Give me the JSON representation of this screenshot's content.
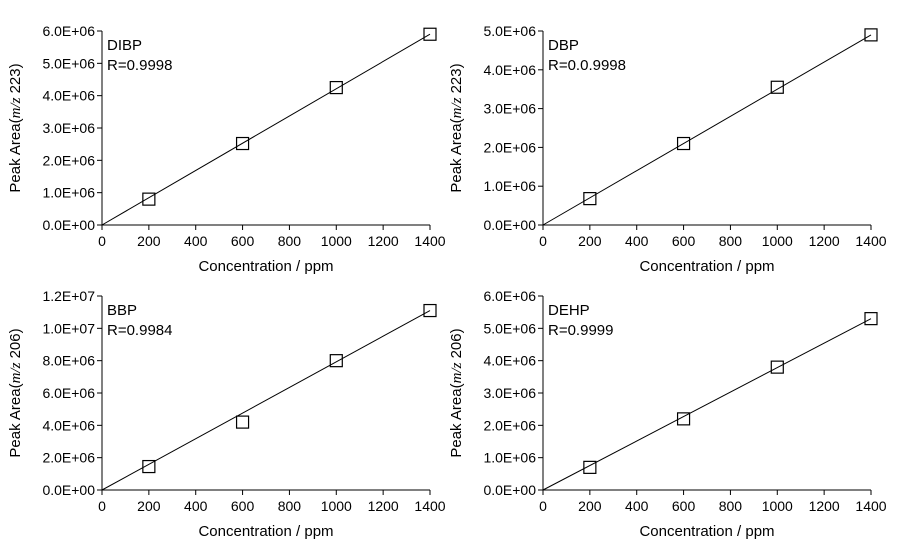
{
  "chart_data": [
    {
      "type": "scatter",
      "annotation": {
        "name": "DIBP",
        "r": "R=0.9998"
      },
      "xlabel": "Concentration / ppm",
      "ylabel": {
        "pre": "Peak Area(",
        "mz": "m/z",
        "post": " 223)"
      },
      "xlim": [
        0,
        1400
      ],
      "xticks": [
        "0",
        "200",
        "400",
        "600",
        "800",
        "1000",
        "1200",
        "1400"
      ],
      "ylim": [
        0,
        6000000
      ],
      "yticks": [
        "0.0E+00",
        "1.0E+06",
        "2.0E+06",
        "3.0E+06",
        "4.0E+06",
        "5.0E+06",
        "6.0E+06"
      ],
      "points": [
        [
          200,
          800000
        ],
        [
          600,
          2520000
        ],
        [
          1000,
          4250000
        ],
        [
          1400,
          5900000
        ]
      ],
      "fit_line": [
        [
          0,
          0
        ],
        [
          1400,
          5900000
        ]
      ]
    },
    {
      "type": "scatter",
      "annotation": {
        "name": "DBP",
        "r": "R=0.0.9998"
      },
      "xlabel": "Concentration / ppm",
      "ylabel": {
        "pre": "Peak Area(",
        "mz": "m/z",
        "post": " 223)"
      },
      "xlim": [
        0,
        1400
      ],
      "xticks": [
        "0",
        "200",
        "400",
        "600",
        "800",
        "1000",
        "1200",
        "1400"
      ],
      "ylim": [
        0,
        5000000
      ],
      "yticks": [
        "0.0E+00",
        "1.0E+06",
        "2.0E+06",
        "3.0E+06",
        "4.0E+06",
        "5.0E+06"
      ],
      "points": [
        [
          200,
          680000
        ],
        [
          600,
          2100000
        ],
        [
          1000,
          3550000
        ],
        [
          1400,
          4900000
        ]
      ],
      "fit_line": [
        [
          0,
          0
        ],
        [
          1400,
          4900000
        ]
      ]
    },
    {
      "type": "scatter",
      "annotation": {
        "name": "BBP",
        "r": "R=0.9984"
      },
      "xlabel": "Concentration / ppm",
      "ylabel": {
        "pre": "Peak Area(",
        "mz": "m/z",
        "post": " 206)"
      },
      "xlim": [
        0,
        1400
      ],
      "xticks": [
        "0",
        "200",
        "400",
        "600",
        "800",
        "1000",
        "1200",
        "1400"
      ],
      "ylim": [
        0,
        12000000
      ],
      "yticks": [
        "0.0E+00",
        "2.0E+06",
        "4.0E+06",
        "6.0E+06",
        "8.0E+06",
        "1.0E+07",
        "1.2E+07"
      ],
      "points": [
        [
          200,
          1450000
        ],
        [
          600,
          4200000
        ],
        [
          1000,
          8000000
        ],
        [
          1400,
          11100000
        ]
      ],
      "fit_line": [
        [
          0,
          0
        ],
        [
          1400,
          11100000
        ]
      ]
    },
    {
      "type": "scatter",
      "annotation": {
        "name": "DEHP",
        "r": "R=0.9999"
      },
      "xlabel": "Concentration / ppm",
      "ylabel": {
        "pre": "Peak Area(",
        "mz": "m/z",
        "post": " 206)"
      },
      "xlim": [
        0,
        1400
      ],
      "xticks": [
        "0",
        "200",
        "400",
        "600",
        "800",
        "1000",
        "1200",
        "1400"
      ],
      "ylim": [
        0,
        6000000
      ],
      "yticks": [
        "0.0E+00",
        "1.0E+06",
        "2.0E+06",
        "3.0E+06",
        "4.0E+06",
        "5.0E+06",
        "6.0E+06"
      ],
      "points": [
        [
          200,
          700000
        ],
        [
          600,
          2200000
        ],
        [
          1000,
          3800000
        ],
        [
          1400,
          5300000
        ]
      ],
      "fit_line": [
        [
          0,
          0
        ],
        [
          1400,
          5300000
        ]
      ]
    }
  ]
}
